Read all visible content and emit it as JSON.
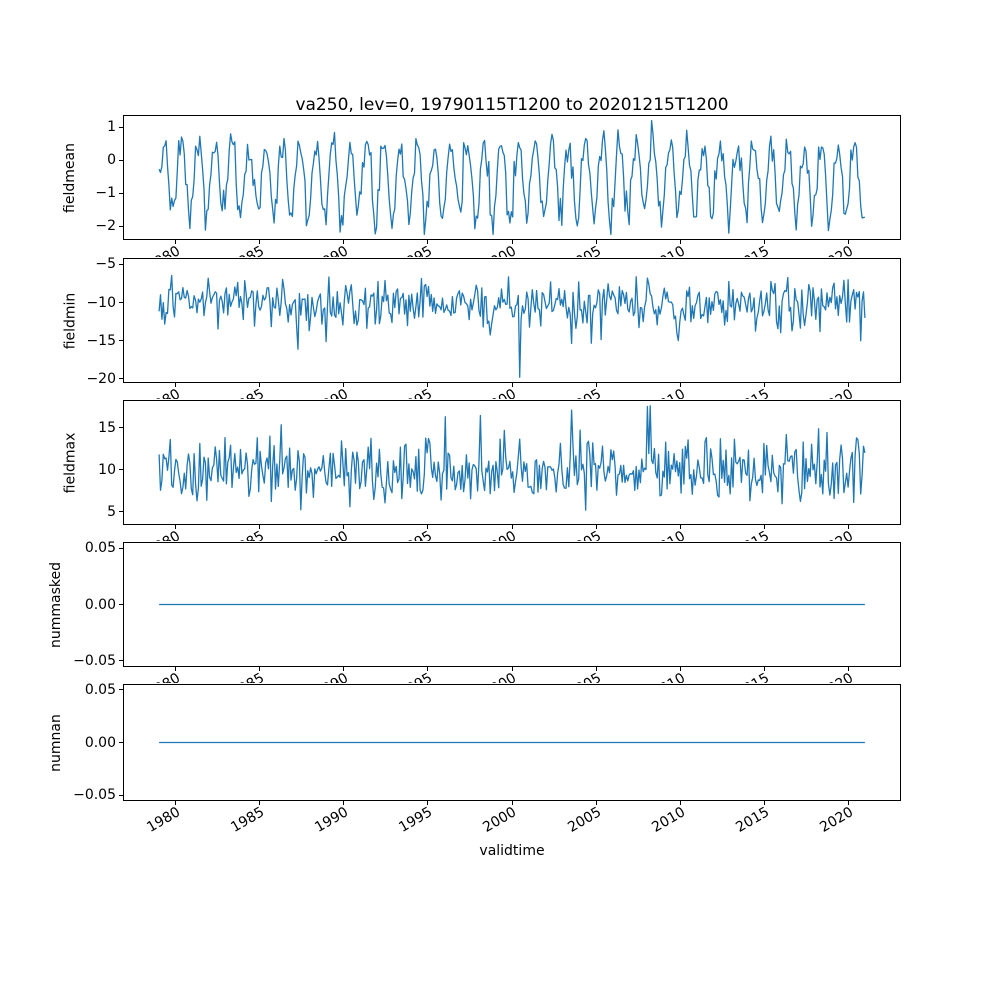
{
  "title": "va250, lev=0, 19790115T1200 to 20201215T1200",
  "xlabel": "validtime",
  "chart_data": {
    "type": "line",
    "title": "va250, lev=0, 19790115T1200 to 20201215T1200",
    "xlabel": "validtime",
    "line_color": "#1f77b4",
    "x_start": 1979.0417,
    "x_end": 2020.9583,
    "n_points": 504,
    "xlim": [
      1976.9,
      2023.1
    ],
    "x_tick_values": [
      1980,
      1985,
      1990,
      1995,
      2000,
      2005,
      2010,
      2015,
      2020
    ],
    "x_tick_labels": [
      "1980",
      "1985",
      "1990",
      "1995",
      "2000",
      "2005",
      "2010",
      "2015",
      "2020"
    ],
    "subplots": [
      {
        "ylabel": "fieldmean",
        "ylim": [
          -2.42,
          1.37
        ],
        "y_tick_values": [
          1,
          0,
          -1,
          -2
        ],
        "y_tick_labels": [
          "1",
          "0",
          "−1",
          "−2"
        ],
        "series_note": "noisy annual cycle, mean ≈ −0.35, peaks ≈ 1.2, troughs ≈ −2.25 (values estimated from pixels)",
        "gen": {
          "kind": "seasonal",
          "seed": 7,
          "base": -0.38,
          "amp": 0.85,
          "skew": 0.5,
          "noise": 0.27,
          "clamp": [
            -2.25,
            1.2
          ]
        }
      },
      {
        "ylabel": "fieldmin",
        "ylim": [
          -20.55,
          -4.16
        ],
        "y_tick_values": [
          -5,
          -10,
          -15,
          -20
        ],
        "y_tick_labels": [
          "−5",
          "−10",
          "−15",
          "−20"
        ],
        "series_note": "noisy series, mean ≈ −10, σ ≈ 1.6, occasional dips to ≈ −19.8, peaks ≈ −4.9 (estimated)",
        "gen": {
          "kind": "noisy",
          "seed": 13,
          "base": -10.1,
          "noise": 1.55,
          "spike_prob": 0.025,
          "spike_sign": -1,
          "spike_span": 6.5,
          "clamp": [
            -19.8,
            -4.9
          ]
        }
      },
      {
        "ylabel": "fieldmax",
        "ylim": [
          3.43,
          18.28
        ],
        "y_tick_values": [
          15,
          10,
          5
        ],
        "y_tick_labels": [
          "15",
          "10",
          "5"
        ],
        "series_note": "noisy series, mean ≈ 10, σ ≈ 1.9, occasional peaks to ≈ 17.6, lows ≈ 4.1 (estimated)",
        "gen": {
          "kind": "noisy",
          "seed": 29,
          "base": 9.9,
          "noise": 1.85,
          "spike_prob": 0.025,
          "spike_sign": 1,
          "spike_span": 4.5,
          "clamp": [
            4.1,
            17.6
          ]
        }
      },
      {
        "ylabel": "nummasked",
        "ylim": [
          -0.0555,
          0.0555
        ],
        "y_tick_values": [
          0.05,
          0,
          -0.05
        ],
        "y_tick_labels": [
          "0.05",
          "0.00",
          "−0.05"
        ],
        "series_note": "constant 0 for all times",
        "gen": {
          "kind": "constant",
          "value": 0
        }
      },
      {
        "ylabel": "numnan",
        "ylim": [
          -0.0555,
          0.0555
        ],
        "y_tick_values": [
          0.05,
          0,
          -0.05
        ],
        "y_tick_labels": [
          "0.05",
          "0.00",
          "−0.05"
        ],
        "series_note": "constant 0 for all times",
        "gen": {
          "kind": "constant",
          "value": 0
        }
      }
    ]
  }
}
